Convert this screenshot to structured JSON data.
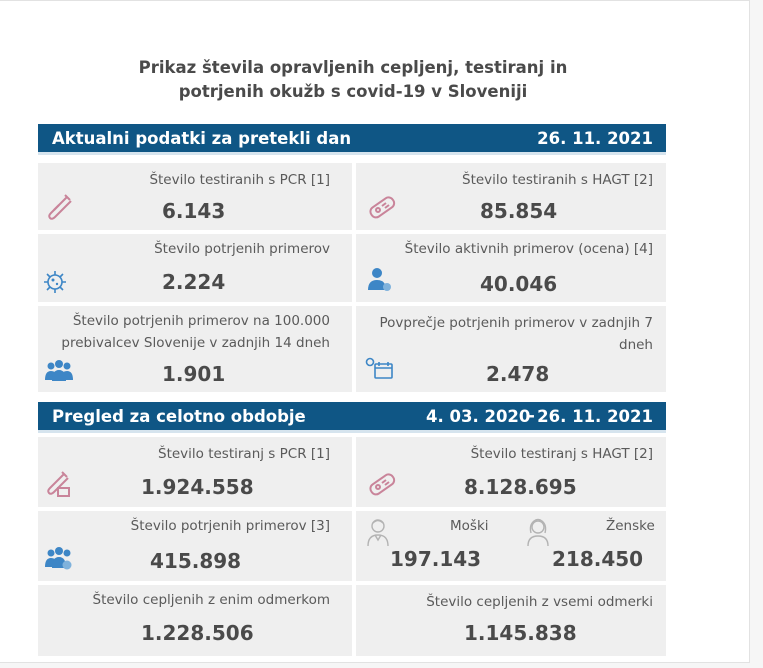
{
  "title": {
    "line1": "Prikaz števila opravljenih cepljenj, testiranj in",
    "line2": "potrjenih okužb s covid-19 v Sloveniji"
  },
  "current": {
    "heading": "Aktualni podatki za pretekli dan",
    "date": "26. 11. 2021",
    "pcr": {
      "label": "Število testiranih s PCR [1]",
      "value": "6.143",
      "icon": "test-tube-icon"
    },
    "hagt": {
      "label": "Število testiranih s HAGT [2]",
      "value": "85.854",
      "icon": "rapid-test-icon"
    },
    "confirmed": {
      "label": "Število potrjenih primerov",
      "value": "2.224",
      "icon": "virus-icon"
    },
    "active": {
      "label": "Število aktivnih primerov (ocena) [4]",
      "value": "40.046",
      "icon": "person-icon"
    },
    "per100k": {
      "label_line1": "Število potrjenih primerov na 100.000",
      "label_line2": "prebivalcev Slovenije v zadnjih 14 dneh",
      "value": "1.901",
      "icon": "people-group-icon"
    },
    "avg7": {
      "label_line1": "Povprečje potrjenih primerov v zadnjih 7",
      "label_line2": "dneh",
      "value": "2.478",
      "icon": "calendar-icon"
    }
  },
  "overall": {
    "heading": "Pregled za celotno obdobje",
    "date_from": "4. 03. 2020",
    "dash": "-",
    "date_to": "26. 11. 2021",
    "pcr": {
      "label": "Število testiranj s PCR [1]",
      "value": "1.924.558",
      "icon": "test-tube-icon"
    },
    "hagt": {
      "label": "Število testiranj s HAGT [2]",
      "value": "8.128.695",
      "icon": "rapid-test-icon"
    },
    "confirmed": {
      "label": "Število potrjenih primerov [3]",
      "value": "415.898",
      "icon": "people-group-icon"
    },
    "male": {
      "label": "Moški",
      "value": "197.143",
      "icon": "male-icon"
    },
    "female": {
      "label": "Ženske",
      "value": "218.450",
      "icon": "female-icon"
    },
    "vacc_one": {
      "label": "Število cepljenih z enim odmerkom",
      "value": "1.228.506"
    },
    "vacc_all": {
      "label": "Število cepljenih z vsemi odmerki",
      "value": "1.145.838"
    }
  },
  "colors": {
    "band": "#0f5685",
    "box": "#efefef",
    "icon_blue": "#3d86c6",
    "icon_pink": "#c9849a"
  }
}
